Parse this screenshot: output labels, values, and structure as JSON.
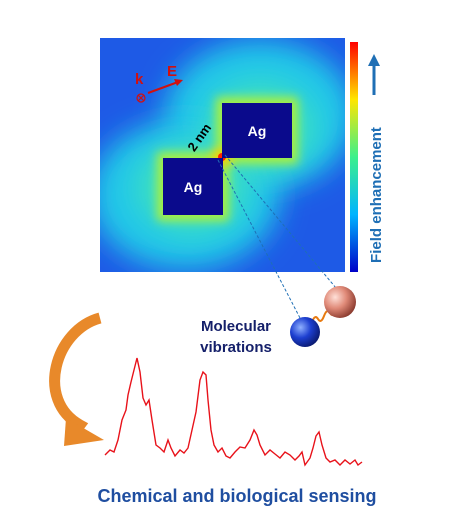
{
  "labels": {
    "k": "k",
    "e_field": "E",
    "gap": "2 nm",
    "ag_top": "Ag",
    "ag_bottom": "Ag",
    "colorbar": "Field enhancement",
    "molecule_line1": "Molecular",
    "molecule_line2": "vibrations",
    "caption": "Chemical and biological sensing"
  }
}
